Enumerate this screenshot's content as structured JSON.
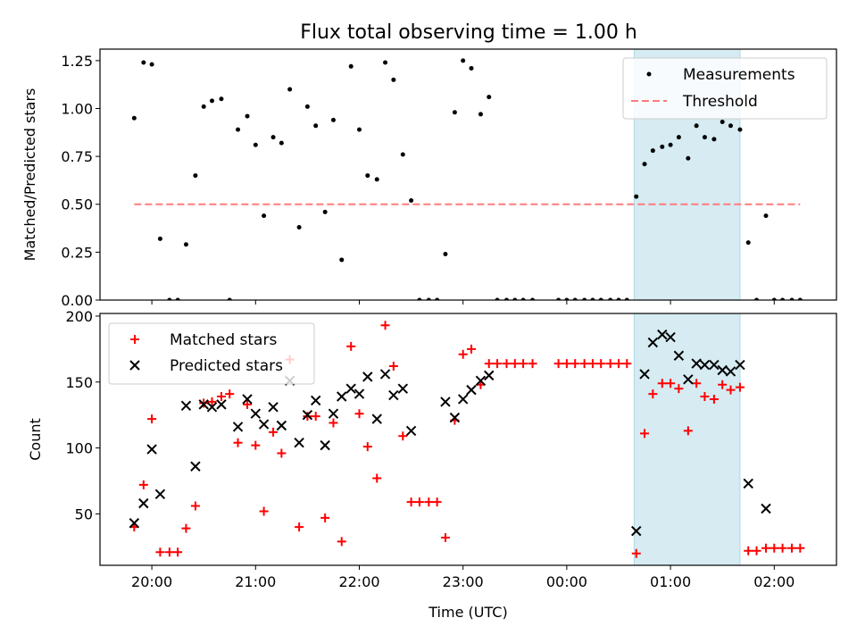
{
  "figure": {
    "title": "Flux total observing time = 1.00 h"
  },
  "chart_data": [
    {
      "type": "scatter",
      "title": "Flux total observing time = 1.00 h",
      "xlabel": "",
      "ylabel": "Matched/Predicted stars",
      "x_unit": "hours since 20:00 UTC",
      "xlim": [
        -0.5,
        6.6
      ],
      "ylim": [
        0,
        1.31
      ],
      "yticks": [
        0.0,
        0.25,
        0.5,
        0.75,
        1.0,
        1.25
      ],
      "ytick_labels": [
        "0.00",
        "0.25",
        "0.50",
        "0.75",
        "1.00",
        "1.25"
      ],
      "highlight_span": {
        "x_start": 4.65,
        "x_end": 5.67,
        "color": "#add8e6"
      },
      "legend": {
        "placement": "top-right",
        "entries": [
          "Measurements",
          "Threshold"
        ]
      },
      "threshold": {
        "name": "Threshold",
        "y": 0.5,
        "x_range": [
          -0.17,
          6.25
        ],
        "color": "#ff7b7b"
      },
      "series": [
        {
          "name": "Measurements",
          "marker": "dot",
          "color": "#000000",
          "points": [
            [
              -0.17,
              0.95
            ],
            [
              -0.08,
              1.24
            ],
            [
              0.0,
              1.23
            ],
            [
              0.08,
              0.32
            ],
            [
              0.17,
              0.0
            ],
            [
              0.25,
              0.0
            ],
            [
              0.33,
              0.29
            ],
            [
              0.42,
              0.65
            ],
            [
              0.5,
              1.01
            ],
            [
              0.58,
              1.04
            ],
            [
              0.67,
              1.05
            ],
            [
              0.75,
              0.0
            ],
            [
              0.83,
              0.89
            ],
            [
              0.92,
              0.96
            ],
            [
              1.0,
              0.81
            ],
            [
              1.08,
              0.44
            ],
            [
              1.17,
              0.85
            ],
            [
              1.25,
              0.82
            ],
            [
              1.33,
              1.1
            ],
            [
              1.42,
              0.38
            ],
            [
              1.5,
              1.01
            ],
            [
              1.58,
              0.91
            ],
            [
              1.67,
              0.46
            ],
            [
              1.75,
              0.94
            ],
            [
              1.83,
              0.21
            ],
            [
              1.92,
              1.22
            ],
            [
              2.0,
              0.89
            ],
            [
              2.08,
              0.65
            ],
            [
              2.17,
              0.63
            ],
            [
              2.25,
              1.24
            ],
            [
              2.33,
              1.15
            ],
            [
              2.42,
              0.76
            ],
            [
              2.5,
              0.52
            ],
            [
              2.58,
              0.0
            ],
            [
              2.67,
              0.0
            ],
            [
              2.75,
              0.0
            ],
            [
              2.83,
              0.24
            ],
            [
              2.92,
              0.98
            ],
            [
              3.0,
              1.25
            ],
            [
              3.08,
              1.21
            ],
            [
              3.17,
              0.97
            ],
            [
              3.25,
              1.06
            ],
            [
              3.33,
              0.0
            ],
            [
              3.42,
              0.0
            ],
            [
              3.5,
              0.0
            ],
            [
              3.58,
              0.0
            ],
            [
              3.67,
              0.0
            ],
            [
              3.92,
              0.0
            ],
            [
              4.0,
              0.0
            ],
            [
              4.08,
              0.0
            ],
            [
              4.17,
              0.0
            ],
            [
              4.25,
              0.0
            ],
            [
              4.33,
              0.0
            ],
            [
              4.42,
              0.0
            ],
            [
              4.5,
              0.0
            ],
            [
              4.58,
              0.0
            ],
            [
              4.67,
              0.54
            ],
            [
              4.75,
              0.71
            ],
            [
              4.83,
              0.78
            ],
            [
              4.92,
              0.8
            ],
            [
              5.0,
              0.81
            ],
            [
              5.08,
              0.85
            ],
            [
              5.17,
              0.74
            ],
            [
              5.25,
              0.91
            ],
            [
              5.33,
              0.85
            ],
            [
              5.42,
              0.84
            ],
            [
              5.5,
              0.93
            ],
            [
              5.58,
              0.91
            ],
            [
              5.67,
              0.89
            ],
            [
              5.75,
              0.3
            ],
            [
              5.83,
              0.0
            ],
            [
              5.92,
              0.44
            ],
            [
              6.0,
              0.0
            ],
            [
              6.08,
              0.0
            ],
            [
              6.17,
              0.0
            ],
            [
              6.25,
              0.0
            ]
          ]
        }
      ]
    },
    {
      "type": "scatter",
      "title": "",
      "xlabel": "Time (UTC)",
      "ylabel": "Count",
      "x_unit": "hours since 20:00 UTC",
      "xlim": [
        -0.5,
        6.6
      ],
      "ylim": [
        11,
        202
      ],
      "xticks": [
        -0.0,
        1.0,
        2.0,
        3.0,
        4.0,
        5.0,
        6.0
      ],
      "xtick_labels": [
        "20:00",
        "21:00",
        "22:00",
        "23:00",
        "00:00",
        "01:00",
        "02:00"
      ],
      "yticks": [
        50,
        100,
        150,
        200
      ],
      "ytick_labels": [
        "50",
        "100",
        "150",
        "200"
      ],
      "highlight_span": {
        "x_start": 4.65,
        "x_end": 5.67,
        "color": "#add8e6"
      },
      "legend": {
        "placement": "top-left",
        "entries": [
          "Matched stars",
          "Predicted stars"
        ]
      },
      "series": [
        {
          "name": "Matched stars",
          "marker": "plus",
          "color": "#ff0000",
          "points": [
            [
              -0.17,
              40
            ],
            [
              -0.08,
              72
            ],
            [
              0.0,
              122
            ],
            [
              0.08,
              21
            ],
            [
              0.17,
              21
            ],
            [
              0.25,
              21
            ],
            [
              0.33,
              39
            ],
            [
              0.42,
              56
            ],
            [
              0.5,
              134
            ],
            [
              0.58,
              135
            ],
            [
              0.67,
              139
            ],
            [
              0.75,
              141
            ],
            [
              0.83,
              104
            ],
            [
              0.92,
              133
            ],
            [
              1.0,
              102
            ],
            [
              1.08,
              52
            ],
            [
              1.17,
              112
            ],
            [
              1.25,
              96
            ],
            [
              1.33,
              167
            ],
            [
              1.42,
              40
            ],
            [
              1.5,
              124
            ],
            [
              1.58,
              124
            ],
            [
              1.67,
              47
            ],
            [
              1.75,
              119
            ],
            [
              1.83,
              29
            ],
            [
              1.92,
              177
            ],
            [
              2.0,
              126
            ],
            [
              2.08,
              101
            ],
            [
              2.17,
              77
            ],
            [
              2.25,
              193
            ],
            [
              2.33,
              162
            ],
            [
              2.42,
              109
            ],
            [
              2.5,
              59
            ],
            [
              2.58,
              59
            ],
            [
              2.67,
              59
            ],
            [
              2.75,
              59
            ],
            [
              2.83,
              32
            ],
            [
              2.92,
              121
            ],
            [
              3.0,
              171
            ],
            [
              3.08,
              175
            ],
            [
              3.17,
              148
            ],
            [
              3.25,
              164
            ],
            [
              3.33,
              164
            ],
            [
              3.42,
              164
            ],
            [
              3.5,
              164
            ],
            [
              3.58,
              164
            ],
            [
              3.67,
              164
            ],
            [
              3.92,
              164
            ],
            [
              4.0,
              164
            ],
            [
              4.08,
              164
            ],
            [
              4.17,
              164
            ],
            [
              4.25,
              164
            ],
            [
              4.33,
              164
            ],
            [
              4.42,
              164
            ],
            [
              4.5,
              164
            ],
            [
              4.58,
              164
            ],
            [
              4.67,
              20
            ],
            [
              4.75,
              111
            ],
            [
              4.83,
              141
            ],
            [
              4.92,
              149
            ],
            [
              5.0,
              149
            ],
            [
              5.08,
              145
            ],
            [
              5.17,
              113
            ],
            [
              5.25,
              149
            ],
            [
              5.33,
              139
            ],
            [
              5.42,
              137
            ],
            [
              5.5,
              148
            ],
            [
              5.58,
              144
            ],
            [
              5.67,
              146
            ],
            [
              5.75,
              22
            ],
            [
              5.83,
              22
            ],
            [
              5.92,
              24
            ],
            [
              6.0,
              24
            ],
            [
              6.08,
              24
            ],
            [
              6.17,
              24
            ],
            [
              6.25,
              24
            ]
          ]
        },
        {
          "name": "Predicted stars",
          "marker": "x",
          "color": "#000000",
          "points": [
            [
              -0.17,
              43
            ],
            [
              -0.08,
              58
            ],
            [
              0.0,
              99
            ],
            [
              0.08,
              65
            ],
            [
              0.33,
              132
            ],
            [
              0.42,
              86
            ],
            [
              0.5,
              133
            ],
            [
              0.58,
              131
            ],
            [
              0.67,
              133
            ],
            [
              0.83,
              116
            ],
            [
              0.92,
              137
            ],
            [
              1.0,
              126
            ],
            [
              1.08,
              118
            ],
            [
              1.17,
              131
            ],
            [
              1.25,
              117
            ],
            [
              1.33,
              151
            ],
            [
              1.42,
              104
            ],
            [
              1.5,
              125
            ],
            [
              1.58,
              136
            ],
            [
              1.67,
              102
            ],
            [
              1.75,
              126
            ],
            [
              1.83,
              139
            ],
            [
              1.92,
              145
            ],
            [
              2.0,
              141
            ],
            [
              2.08,
              154
            ],
            [
              2.17,
              122
            ],
            [
              2.25,
              156
            ],
            [
              2.33,
              140
            ],
            [
              2.42,
              145
            ],
            [
              2.5,
              113
            ],
            [
              2.83,
              135
            ],
            [
              2.92,
              123
            ],
            [
              3.0,
              137
            ],
            [
              3.08,
              144
            ],
            [
              3.17,
              151
            ],
            [
              3.25,
              155
            ],
            [
              4.67,
              37
            ],
            [
              4.75,
              156
            ],
            [
              4.83,
              180
            ],
            [
              4.92,
              186
            ],
            [
              5.0,
              184
            ],
            [
              5.08,
              170
            ],
            [
              5.17,
              152
            ],
            [
              5.25,
              164
            ],
            [
              5.33,
              163
            ],
            [
              5.42,
              163
            ],
            [
              5.5,
              159
            ],
            [
              5.58,
              158
            ],
            [
              5.67,
              163
            ],
            [
              5.75,
              73
            ],
            [
              5.92,
              54
            ]
          ]
        }
      ]
    }
  ]
}
